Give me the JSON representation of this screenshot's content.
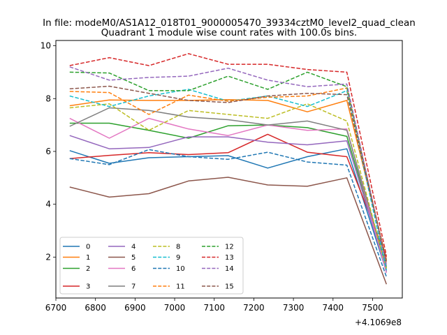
{
  "suptitle": "In file: modeM0/AS1A12_018T01_9000005470_39334cztM0_level2_quad_clean",
  "chart_data": {
    "type": "line",
    "title": "Quadrant 1 module wise count rates with 100.0s bins.",
    "xlabel": "",
    "ylabel": "",
    "x_offset_label": "+4.1069e8",
    "x": [
      6735,
      6835,
      6935,
      7035,
      7135,
      7235,
      7335,
      7435,
      7535
    ],
    "xlim": [
      6700,
      7575
    ],
    "ylim": [
      0.45,
      10.2
    ],
    "xticks": [
      6700,
      6800,
      6900,
      7000,
      7100,
      7200,
      7300,
      7400,
      7500
    ],
    "xtick_labels": [
      "6700",
      "6800",
      "6900",
      "7000",
      "7100",
      "7200",
      "7300",
      "7400",
      "7500"
    ],
    "yticks": [
      2,
      4,
      6,
      8,
      10
    ],
    "ytick_labels": [
      "2",
      "4",
      "6",
      "8",
      "10"
    ],
    "grid": false,
    "legend": {
      "placement": "lower-left",
      "columns": 4
    },
    "series": [
      {
        "name": "0",
        "color": "#1f77b4",
        "dash": "solid",
        "values": [
          6.03,
          5.55,
          5.76,
          5.8,
          5.84,
          5.37,
          5.8,
          6.1,
          1.45
        ]
      },
      {
        "name": "1",
        "color": "#ff7f0e",
        "dash": "solid",
        "values": [
          7.73,
          7.95,
          7.93,
          7.93,
          7.96,
          7.93,
          7.5,
          7.93,
          1.9
        ]
      },
      {
        "name": "2",
        "color": "#2ca02c",
        "dash": "solid",
        "values": [
          7.07,
          7.07,
          6.8,
          6.5,
          6.97,
          7.0,
          6.9,
          6.57,
          1.6
        ]
      },
      {
        "name": "3",
        "color": "#d62728",
        "dash": "solid",
        "values": [
          5.73,
          5.85,
          5.95,
          5.88,
          5.95,
          6.65,
          5.97,
          5.8,
          2.0
        ]
      },
      {
        "name": "4",
        "color": "#9467bd",
        "dash": "solid",
        "values": [
          6.6,
          6.1,
          6.15,
          6.55,
          6.55,
          6.35,
          6.25,
          6.4,
          1.5
        ]
      },
      {
        "name": "5",
        "color": "#8c564b",
        "dash": "solid",
        "values": [
          4.65,
          4.27,
          4.4,
          4.88,
          5.02,
          4.73,
          4.68,
          5.0,
          0.97
        ]
      },
      {
        "name": "6",
        "color": "#e377c2",
        "dash": "solid",
        "values": [
          7.25,
          6.5,
          7.25,
          6.85,
          6.6,
          7.0,
          6.8,
          6.85,
          1.4
        ]
      },
      {
        "name": "7",
        "color": "#7f7f7f",
        "dash": "solid",
        "values": [
          6.95,
          7.65,
          7.55,
          7.3,
          7.2,
          7.0,
          7.15,
          6.8,
          1.65
        ]
      },
      {
        "name": "8",
        "color": "#bcbd22",
        "dash": "dashed",
        "values": [
          7.65,
          7.8,
          6.8,
          7.55,
          7.4,
          7.25,
          7.8,
          7.15,
          1.55
        ]
      },
      {
        "name": "9",
        "color": "#17becf",
        "dash": "dashed",
        "values": [
          8.1,
          7.7,
          8.1,
          8.35,
          7.9,
          8.1,
          7.7,
          8.3,
          1.5
        ]
      },
      {
        "name": "10",
        "color": "#1f77b4",
        "dash": "dashed",
        "values": [
          5.73,
          5.5,
          6.07,
          5.8,
          5.7,
          5.97,
          5.6,
          5.48,
          1.25
        ]
      },
      {
        "name": "11",
        "color": "#ff7f0e",
        "dash": "dashed",
        "values": [
          8.27,
          8.23,
          7.4,
          8.13,
          7.9,
          8.05,
          8.1,
          8.4,
          1.8
        ]
      },
      {
        "name": "12",
        "color": "#2ca02c",
        "dash": "dashed",
        "values": [
          9.0,
          8.97,
          8.3,
          8.3,
          8.85,
          8.35,
          9.0,
          8.45,
          1.7
        ]
      },
      {
        "name": "13",
        "color": "#d62728",
        "dash": "dashed",
        "values": [
          9.25,
          9.55,
          9.25,
          9.7,
          9.3,
          9.3,
          9.1,
          9.0,
          2.05
        ]
      },
      {
        "name": "14",
        "color": "#9467bd",
        "dash": "dashed",
        "values": [
          9.2,
          8.7,
          8.8,
          8.85,
          9.15,
          8.7,
          8.45,
          8.55,
          1.7
        ]
      },
      {
        "name": "15",
        "color": "#8c564b",
        "dash": "dashed",
        "values": [
          8.37,
          8.47,
          8.2,
          7.93,
          7.85,
          8.1,
          8.2,
          8.15,
          1.85
        ]
      }
    ]
  }
}
